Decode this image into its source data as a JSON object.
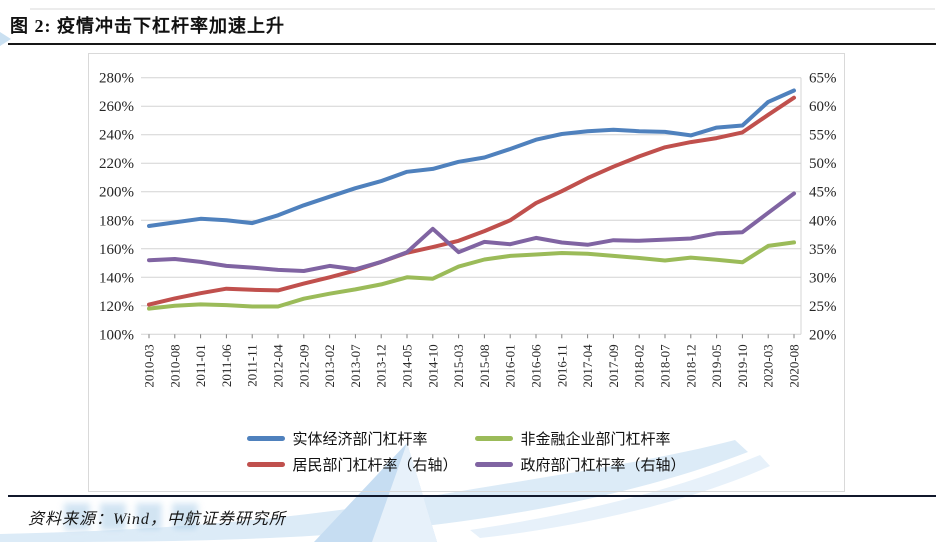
{
  "page": {
    "title": "图 2: 疫情冲击下杠杆率加速上升",
    "source_note": "资料来源：Wind，中航证券研究所"
  },
  "chart_data": {
    "type": "line",
    "title": "图 2: 疫情冲击下杠杆率加速上升",
    "grid": "horizontal",
    "legend_position": "bottom",
    "categories": [
      "2010-03",
      "2010-08",
      "2011-01",
      "2011-06",
      "2011-11",
      "2012-04",
      "2012-09",
      "2013-02",
      "2013-07",
      "2013-12",
      "2014-05",
      "2014-10",
      "2015-03",
      "2015-08",
      "2016-01",
      "2016-06",
      "2016-11",
      "2017-04",
      "2017-09",
      "2018-02",
      "2018-07",
      "2018-12",
      "2019-05",
      "2019-10",
      "2020-03",
      "2020-08"
    ],
    "left_axis": {
      "min": 100,
      "max": 280,
      "step": 20,
      "unit": "%",
      "tick_labels": [
        "100%",
        "120%",
        "140%",
        "160%",
        "180%",
        "200%",
        "220%",
        "240%",
        "260%",
        "280%"
      ]
    },
    "right_axis": {
      "min": 20,
      "max": 65,
      "step": 5,
      "unit": "%",
      "tick_labels": [
        "20%",
        "25%",
        "30%",
        "35%",
        "40%",
        "45%",
        "50%",
        "55%",
        "60%",
        "65%"
      ]
    },
    "series": [
      {
        "name": "实体经济部门杠杆率",
        "axis": "left",
        "color": "#4F81BD",
        "values": [
          176,
          178.5,
          181,
          180,
          178,
          183.5,
          190.5,
          196.5,
          202.5,
          207.5,
          214,
          216,
          221,
          224,
          230,
          236.5,
          240.5,
          242.5,
          243.5,
          242.5,
          242,
          239.5,
          245,
          246.5,
          263,
          271
        ]
      },
      {
        "name": "非金融企业部门杠杆率",
        "axis": "left",
        "color": "#9BBB59",
        "values": [
          118,
          120,
          121,
          120.5,
          119.5,
          119.5,
          125,
          128.5,
          131.5,
          135,
          140,
          139,
          147.5,
          152.5,
          155,
          156,
          157,
          156.5,
          155,
          153.5,
          151.8,
          153.8,
          152.3,
          150.5,
          162,
          164.5
        ]
      },
      {
        "name": "居民部门杠杆率（右轴）",
        "axis": "right",
        "color": "#C0504D",
        "values": [
          25.2,
          26.3,
          27.2,
          28,
          27.8,
          27.7,
          28.9,
          30,
          31.2,
          32.7,
          34.3,
          35.3,
          36.4,
          38.1,
          40,
          43,
          45.1,
          47.4,
          49.4,
          51.2,
          52.8,
          53.7,
          54.4,
          55.4,
          58.5,
          61.5
        ]
      },
      {
        "name": "政府部门杠杆率（右轴）",
        "axis": "right",
        "color": "#8064A2",
        "values": [
          33,
          33.2,
          32.7,
          32,
          31.7,
          31.3,
          31.1,
          32,
          31.4,
          32.7,
          34.4,
          38.5,
          34.4,
          36.2,
          35.8,
          36.9,
          36.1,
          35.7,
          36.5,
          36.4,
          36.6,
          36.8,
          37.7,
          37.9,
          41.3,
          44.7
        ]
      }
    ],
    "source": "Wind，中航证券研究所"
  },
  "style": {
    "gridline_color": "#d4d4d4",
    "axis_text_color": "#262626",
    "tick_mark_color": "#808080",
    "watermark_blue_1": "#c6ddf2",
    "watermark_blue_2": "#dcebf7",
    "watermark_blue_3": "#e7f1fa"
  }
}
